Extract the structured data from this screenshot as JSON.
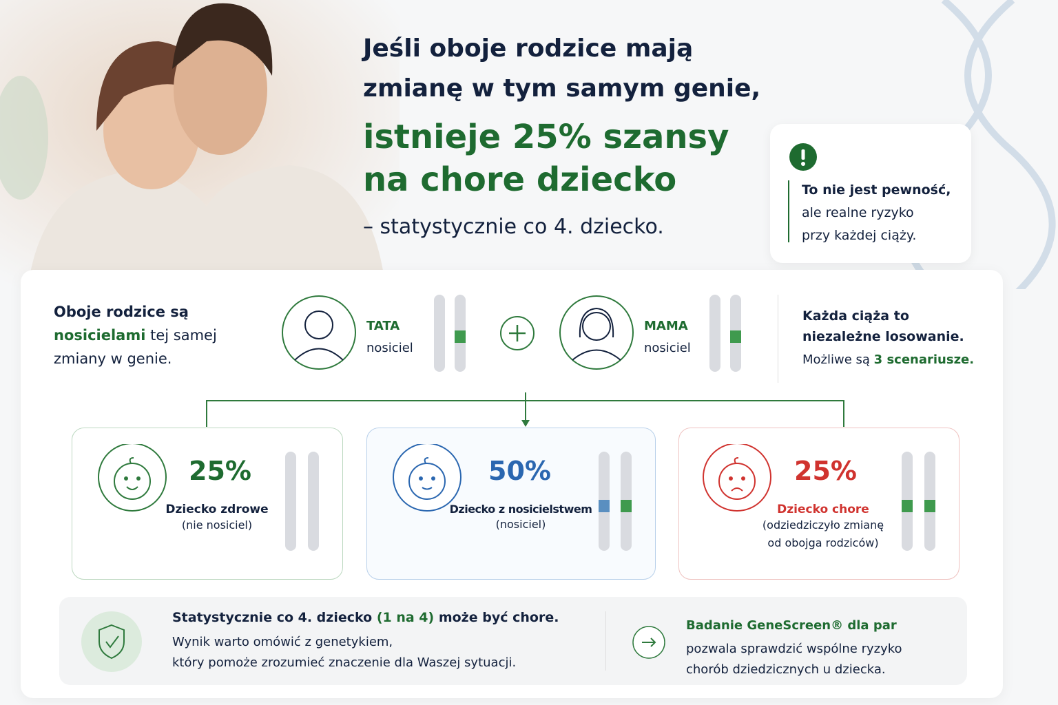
{
  "headline": {
    "line1": "Jeśli oboje rodzice mają",
    "line2": "zmianę w tym samym genie,",
    "highlight1": "istnieje 25% szansy",
    "highlight2": "na chore dziecko",
    "subline": "– statystycznie co 4. dziecko."
  },
  "note": {
    "lines": [
      "To nie jest pewność,",
      "ale realne ryzyko",
      "przy każdej ciąży."
    ]
  },
  "parents": {
    "intro": [
      "Oboje rodzice są",
      "nosicielami",
      "tej samej",
      "zmiany w genie."
    ],
    "father": {
      "role": "TATA",
      "status": "nosiciel"
    },
    "mother": {
      "role": "MAMA",
      "status": "nosiciel"
    },
    "info": [
      "Każda ciąża to",
      "niezależne losowanie.",
      "Możliwe są",
      "3 scenariusze."
    ]
  },
  "scenarios": [
    {
      "percent": "25%",
      "label": "Dziecko zdrowe",
      "notes": [
        "(nie nosiciel)"
      ]
    },
    {
      "percent": "50%",
      "label": "Dziecko z nosicielstwem",
      "notes": [
        "(nosiciel)"
      ]
    },
    {
      "percent": "25%",
      "label": "Dziecko chore",
      "notes": [
        "(odziedziczyło zmianę",
        "od obojga rodziców)"
      ]
    }
  ],
  "footer": {
    "left": {
      "title": [
        "Statystycznie co 4. dziecko",
        "(1 na 4)",
        "może być chore."
      ],
      "lines": [
        "Wynik warto omówić z genetykiem,",
        "który pomoże zrozumieć znaczenie dla Waszej sytuacji."
      ]
    },
    "right": {
      "title": "Badanie GeneScreen® dla par",
      "lines": [
        "pozwala sprawdzić wspólne ryzyko",
        "chorób dziedzicznych u dziecka."
      ]
    }
  }
}
